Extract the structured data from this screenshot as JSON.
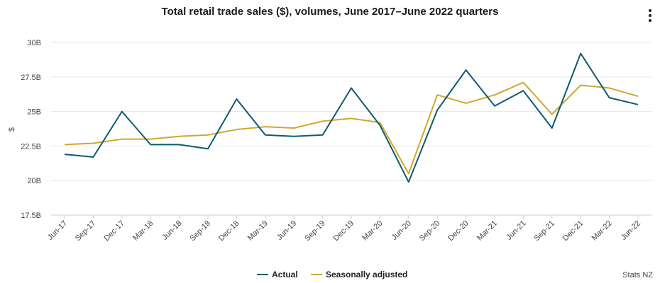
{
  "header": {
    "title": "Total retail trade sales ($), volumes, June 2017–June 2022 quarters",
    "menu_icon": "kebab-menu-icon"
  },
  "footer": {
    "credit": "Stats NZ"
  },
  "colors": {
    "actual": "#0f5a6e",
    "seasonal": "#cfa82e",
    "grid": "#e6e6e6",
    "axis": "#cccccc"
  },
  "chart_data": {
    "type": "line",
    "title": "Total retail trade sales ($), volumes, June 2017–June 2022 quarters",
    "xlabel": "",
    "ylabel": "$",
    "ylim": [
      17.5,
      30
    ],
    "yticks": [
      17.5,
      20,
      22.5,
      25,
      27.5,
      30
    ],
    "ytick_labels": [
      "17.5B",
      "20B",
      "22.5B",
      "25B",
      "27.5B",
      "30B"
    ],
    "categories": [
      "Jun-17",
      "Sep-17",
      "Dec-17",
      "Mar-18",
      "Jun-18",
      "Sep-18",
      "Dec-18",
      "Mar-19",
      "Jun-19",
      "Sep-19",
      "Dec-19",
      "Mar-20",
      "Jun-20",
      "Sep-20",
      "Dec-20",
      "Mar-21",
      "Jun-21",
      "Sep-21",
      "Dec-21",
      "Mar-22",
      "Jun-22"
    ],
    "series": [
      {
        "name": "Actual",
        "values": [
          21.9,
          21.7,
          25.0,
          22.6,
          22.6,
          22.3,
          25.9,
          23.3,
          23.2,
          23.3,
          26.7,
          24.0,
          19.9,
          25.1,
          28.0,
          25.4,
          26.5,
          23.8,
          29.2,
          26.0,
          25.5
        ]
      },
      {
        "name": "Seasonally adjusted",
        "values": [
          22.6,
          22.7,
          23.0,
          23.0,
          23.2,
          23.3,
          23.7,
          23.9,
          23.8,
          24.3,
          24.5,
          24.2,
          20.5,
          26.2,
          25.6,
          26.2,
          27.1,
          24.8,
          26.9,
          26.7,
          26.1
        ]
      }
    ],
    "legend_position": "bottom-center",
    "grid": true
  }
}
